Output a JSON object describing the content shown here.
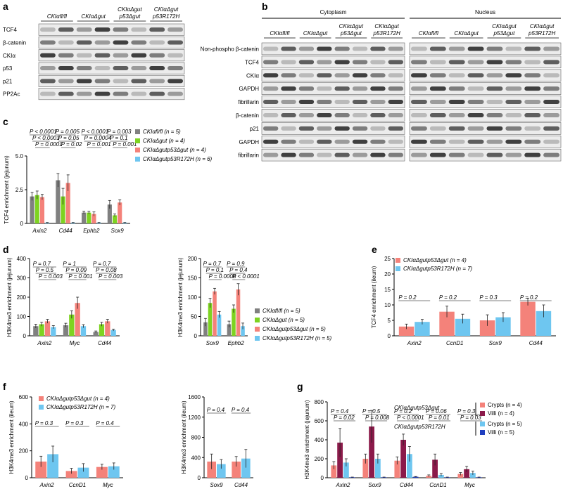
{
  "panel_labels": [
    "a",
    "b",
    "c",
    "d",
    "e",
    "f",
    "g"
  ],
  "blots": [
    {
      "headers": [
        [
          "CKIαfl/fl"
        ],
        [
          "CKIαΔgut"
        ],
        [
          "CKIαΔgut",
          "p53Δgut"
        ],
        [
          "CKIαΔgut",
          "p53R172H"
        ]
      ],
      "rows": [
        "TCF4",
        "β-catenin",
        "CKIα",
        "p53",
        "p21",
        "PP2Ac"
      ]
    },
    {
      "sections": [
        "Cytoplasm",
        "Nucleus"
      ],
      "headers": [
        [
          "CKIαfl/fl"
        ],
        [
          "CKIαΔgut"
        ],
        [
          "CKIαΔgut",
          "p53Δgut"
        ],
        [
          "CKIαΔgut",
          "p53R172H"
        ]
      ],
      "rows": [
        "Non-phospho β-catenin",
        "TCF4",
        "CKIα",
        "GAPDH",
        "fibrillarin",
        "β-catenin",
        "p21",
        "GAPDH",
        "fibrillarin"
      ]
    }
  ],
  "chart_data": [
    {
      "type": "bar",
      "y_label": "TCF4 enrichment (jejunum)",
      "categories": [
        "Axin2",
        "Cd44",
        "Ephb2",
        "Sox9"
      ],
      "ylim": [
        0,
        5
      ],
      "yticks": [
        0,
        2.5,
        {
          "value": 5,
          "label": "5.0"
        }
      ],
      "series": [
        {
          "name": "CKIαfl/fl (n = 5)",
          "color": "#808080",
          "values": [
            2.0,
            3.2,
            0.8,
            1.4
          ],
          "errors": [
            0.3,
            0.5,
            0.1,
            0.3
          ]
        },
        {
          "name": "CKIαΔgut (n = 4)",
          "color": "#7ed321",
          "values": [
            2.1,
            2.0,
            0.8,
            0.6
          ],
          "errors": [
            0.3,
            0.6,
            0.1,
            0.1
          ]
        },
        {
          "name": "CKIαΔgutp53Δgut (n = 4)",
          "color": "#f4827a",
          "values": [
            1.95,
            3.0,
            0.7,
            1.55
          ],
          "errors": [
            0.2,
            0.6,
            0.15,
            0.2
          ]
        },
        {
          "name": "CKIαΔgutp53R172H (n = 6)",
          "color": "#6ec6f0",
          "values": [
            0.05,
            0.05,
            0.05,
            0.05
          ],
          "errors": [
            0.02,
            0.02,
            0.02,
            0.02
          ]
        }
      ],
      "pvalues": [
        [
          "P < 0.0001",
          "P < 0.0001",
          "P = 0.0001"
        ],
        [
          "P = 0.005",
          "P = 0.05",
          "P = 0.02"
        ],
        [
          "P < 0.0001",
          "P = 0.0004",
          "P = 0.001"
        ],
        [
          "P = 0.003",
          "P = 0.1",
          "P = 0.001"
        ]
      ]
    },
    {
      "type": "bar",
      "y_label": "H3K4me3 enrichment (jejunum)",
      "categories": [
        "Axin2",
        "Myc",
        "Cd44"
      ],
      "ylim": [
        0,
        400
      ],
      "yticks": [
        0,
        100,
        200,
        300,
        400
      ],
      "series": [
        {
          "color": "#808080",
          "values": [
            50,
            55,
            20
          ],
          "errors": [
            10,
            10,
            5
          ]
        },
        {
          "color": "#7ed321",
          "values": [
            60,
            110,
            60
          ],
          "errors": [
            10,
            20,
            10
          ]
        },
        {
          "color": "#f4827a",
          "values": [
            75,
            170,
            75
          ],
          "errors": [
            10,
            30,
            10
          ]
        },
        {
          "color": "#6ec6f0",
          "values": [
            45,
            50,
            30
          ],
          "errors": [
            8,
            8,
            5
          ]
        }
      ],
      "pvalues": [
        [
          "P = 0.7",
          "P = 0.5",
          "P = 0.003"
        ],
        [
          "P = 1",
          "P = 0.09",
          "P = 0.001"
        ],
        [
          "P = 0.7",
          "P = 0.08",
          "P = 0.003"
        ]
      ]
    },
    {
      "type": "bar",
      "y_label": "H3K4me3 enrichment (jejunum)",
      "categories": [
        "Sox9",
        "Ephb2"
      ],
      "ylim": [
        0,
        200
      ],
      "yticks": [
        0,
        50,
        100,
        150,
        200
      ],
      "series": [
        {
          "name": "CKIαfl/fl (n = 5)",
          "color": "#808080",
          "values": [
            35,
            30
          ],
          "errors": [
            10,
            8
          ]
        },
        {
          "name": "CKIαΔgut (n = 5)",
          "color": "#7ed321",
          "values": [
            85,
            70
          ],
          "errors": [
            12,
            10
          ]
        },
        {
          "name": "CKIαΔgutp53Δgut (n = 5)",
          "color": "#f4827a",
          "values": [
            115,
            120
          ],
          "errors": [
            8,
            15
          ]
        },
        {
          "name": "CKIαΔgutp53R172H (n = 5)",
          "color": "#6ec6f0",
          "values": [
            55,
            25
          ],
          "errors": [
            8,
            8
          ]
        }
      ],
      "pvalues": [
        [
          "P = 0.7",
          "P = 0.1",
          "P = 0.0008"
        ],
        [
          "P = 0.9",
          "P = 0.4",
          "P < 0.0001"
        ]
      ]
    },
    {
      "type": "bar",
      "y_label": "TCF4 enrichment (ileum)",
      "categories": [
        "Axin2",
        "CcnD1",
        "Sox9",
        "Cd44"
      ],
      "ylim": [
        0,
        25
      ],
      "yticks": [
        0,
        5,
        10,
        15,
        20,
        25
      ],
      "series": [
        {
          "name": "CKIαΔgutp53Δgut (n = 4)",
          "color": "#f4827a",
          "values": [
            3,
            7.8,
            5,
            11
          ],
          "errors": [
            0.8,
            1.8,
            1.8,
            1.2
          ]
        },
        {
          "name": "CKIαΔgutp53R172H (n = 7)",
          "color": "#6ec6f0",
          "values": [
            4.5,
            5.5,
            6,
            8
          ],
          "errors": [
            0.8,
            1.5,
            1.5,
            2
          ]
        }
      ],
      "pvalues": [
        [
          "P = 0.2"
        ],
        [
          "P = 0.2"
        ],
        [
          "P = 0.3"
        ],
        [
          "P = 0.2"
        ]
      ]
    },
    {
      "type": "bar",
      "y_label": "H3K4me3 enrichment (ileum)",
      "categories": [
        "Axin2",
        "CcnD1",
        "Myc"
      ],
      "ylim": [
        0,
        600
      ],
      "yticks": [
        0,
        200,
        400,
        600
      ],
      "series": [
        {
          "name": "CKIαΔgutp53Δgut (n = 4)",
          "color": "#f4827a",
          "values": [
            120,
            50,
            80
          ],
          "errors": [
            40,
            20,
            20
          ]
        },
        {
          "name": "CKIαΔgutp53R172H (n = 7)",
          "color": "#6ec6f0",
          "values": [
            175,
            75,
            85
          ],
          "errors": [
            60,
            30,
            25
          ]
        }
      ],
      "pvalues": [
        [
          "P = 0.3"
        ],
        [
          "P = 0.3"
        ],
        [
          "P = 0.4"
        ]
      ]
    },
    {
      "type": "bar",
      "y_label": "H3K4me3 enrichment (ileum)",
      "categories": [
        "Sox9",
        "Cd44"
      ],
      "ylim": [
        0,
        1600
      ],
      "yticks": [
        0,
        400,
        800,
        1200,
        1600
      ],
      "series": [
        {
          "color": "#f4827a",
          "values": [
            320,
            320
          ],
          "errors": [
            150,
            100
          ]
        },
        {
          "color": "#6ec6f0",
          "values": [
            270,
            380
          ],
          "errors": [
            90,
            180
          ]
        }
      ],
      "pvalues": [
        [
          "P = 0.4"
        ],
        [
          "P = 0.4"
        ]
      ]
    },
    {
      "type": "bar",
      "y_label": "H3K4me3 enrichment (jejunum)",
      "categories": [
        "Axin2",
        "Sox9",
        "Cd44",
        "CcnD1",
        "Myc"
      ],
      "ylim": [
        0,
        800
      ],
      "yticks": [
        0,
        200,
        400,
        600,
        800
      ],
      "group_labels": [
        "CKIαΔgutp53Δgut",
        "CKIαΔgutp53R172H"
      ],
      "series": [
        {
          "name": "Crypts (n = 4)",
          "color": "#f4827a",
          "values": [
            130,
            200,
            180,
            20,
            40
          ],
          "errors": [
            40,
            50,
            40,
            10,
            15
          ]
        },
        {
          "name": "Villi (n = 4)",
          "color": "#8b1a4a",
          "values": [
            370,
            540,
            400,
            190,
            90
          ],
          "errors": [
            150,
            170,
            60,
            60,
            30
          ]
        },
        {
          "name": "Crypts (n = 5)",
          "color": "#6ec6f0",
          "values": [
            160,
            200,
            250,
            30,
            50
          ],
          "errors": [
            40,
            50,
            80,
            15,
            20
          ]
        },
        {
          "name": "Villi (n = 5)",
          "color": "#1f3fbf",
          "values": [
            5,
            5,
            10,
            5,
            5
          ],
          "errors": [
            2,
            2,
            3,
            2,
            2
          ]
        }
      ],
      "pvalues": [
        [
          "P = 0.4",
          "P = 0.02"
        ],
        [
          "P = 0.5",
          "P = 0.008"
        ],
        [
          "P = 0.2",
          "P < 0.0001"
        ],
        [
          "P = 0.06",
          "P = 0.01"
        ],
        [
          "P = 0.3",
          "P = 0.03"
        ]
      ]
    }
  ]
}
